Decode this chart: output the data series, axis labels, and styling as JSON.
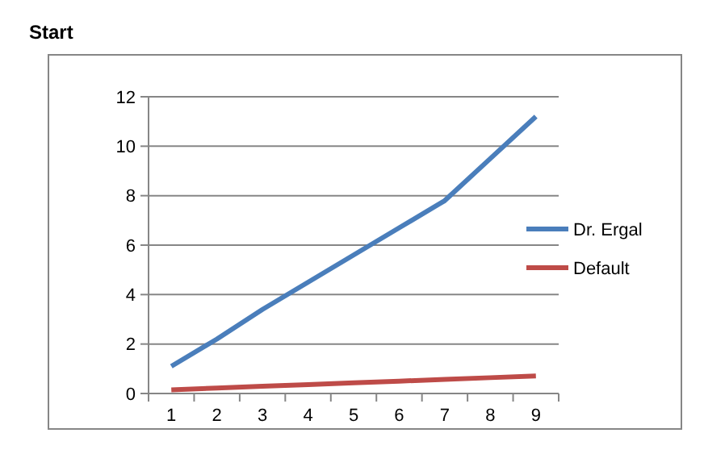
{
  "chart_data": {
    "type": "line",
    "annotations": [
      "Start"
    ],
    "categories": [
      "1",
      "2",
      "3",
      "4",
      "5",
      "6",
      "7",
      "8",
      "9"
    ],
    "series": [
      {
        "name": "Dr. Ergal",
        "color": "#4a7ebb",
        "values": [
          1.1,
          2.2,
          3.4,
          4.5,
          5.6,
          6.7,
          7.8,
          9.5,
          11.2
        ]
      },
      {
        "name": "Default",
        "color": "#be4b48",
        "values": [
          0.15,
          0.22,
          0.29,
          0.36,
          0.43,
          0.5,
          0.57,
          0.64,
          0.71
        ]
      }
    ],
    "ylim": [
      0,
      12
    ],
    "yticks": [
      0,
      2,
      4,
      6,
      8,
      10,
      12
    ],
    "grid": "y",
    "legend": "right",
    "marker": "none",
    "line_style": "solid"
  }
}
